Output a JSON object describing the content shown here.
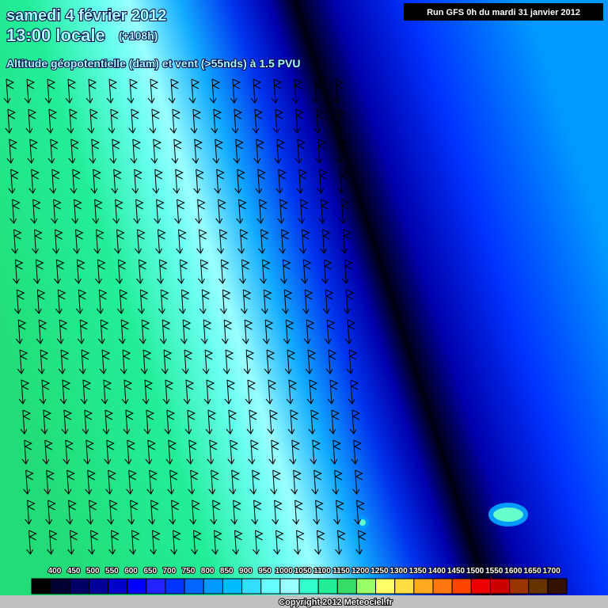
{
  "header": {
    "date": "samedi 4 février 2012",
    "time": "13:00 locale",
    "lead": "(+108h)",
    "subtitle": "Altitude géopotentielle (dam) et vent (>55nds) à 1.5 PVU",
    "run": "Run GFS 0h du mardi 31 janvier 2012"
  },
  "legend": {
    "labels": [
      400,
      450,
      500,
      550,
      600,
      650,
      700,
      750,
      800,
      850,
      900,
      950,
      1000,
      1050,
      1100,
      1150,
      1200,
      1250,
      1300,
      1350,
      1400,
      1450,
      1500,
      1550,
      1600,
      1650,
      1700
    ],
    "colors": [
      "#000000",
      "#000033",
      "#000066",
      "#000099",
      "#0000cc",
      "#0000ff",
      "#2222ff",
      "#0033ff",
      "#0066ff",
      "#0099ff",
      "#00bbff",
      "#33ddff",
      "#66ffff",
      "#99ffff",
      "#33ffcc",
      "#22ee99",
      "#33dd66",
      "#99ff66",
      "#ffff66",
      "#ffdd44",
      "#ffaa22",
      "#ff7711",
      "#ff4400",
      "#ee0000",
      "#cc0000",
      "#993300",
      "#663300",
      "#331100"
    ]
  },
  "footer": {
    "copyright": "Copyright 2012 Meteociel.fr"
  }
}
